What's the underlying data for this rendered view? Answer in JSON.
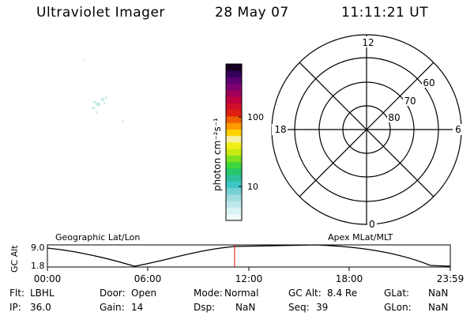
{
  "header": {
    "instrument": "Ultraviolet Imager",
    "date": "28 May 07",
    "time": "11:11:21 UT"
  },
  "colorbar": {
    "unit_label": "photon cm⁻²s⁻¹",
    "ticks": [
      "100",
      "10"
    ],
    "colors": [
      "#f0fafa",
      "#d9f2f2",
      "#bfe8ea",
      "#9fdcde",
      "#78d0d2",
      "#3ec8c8",
      "#2fbf9c",
      "#25c86a",
      "#3ed63c",
      "#7fe020",
      "#c8ea10",
      "#f0f018",
      "#f8f0a0",
      "#ffd200",
      "#ff9a00",
      "#f06000",
      "#e02010",
      "#d0102a",
      "#c00040",
      "#a0005a",
      "#800070",
      "#5c0070",
      "#34005a",
      "#140020"
    ]
  },
  "polar_plot": {
    "clock_labels": [
      "12",
      "18",
      "6",
      "0"
    ],
    "lat_labels": [
      "60",
      "70",
      "80"
    ]
  },
  "timeline": {
    "left_title": "Geographic Lat/Lon",
    "right_title": "Apex MLat/MLT",
    "axis_label": "GC Alt",
    "y_ticks": [
      "9.0",
      "1.8"
    ],
    "x_ticks": [
      "00:00",
      "06:00",
      "12:00",
      "18:00",
      "23:59"
    ],
    "marker_color": "#e00000"
  },
  "status": {
    "flt_label": "Flt:",
    "flt_value": "LBHL",
    "door_label": "Door:",
    "door_value": "Open",
    "mode_label": "Mode:",
    "mode_value": "Normal",
    "gcalt_label": "GC Alt:",
    "gcalt_value": "8.4 Re",
    "glat_label": "GLat:",
    "glat_value": "NaN",
    "ip_label": "IP:",
    "ip_value": "36.0",
    "gain_label": "Gain:",
    "gain_value": "14",
    "dsp_label": "Dsp:",
    "dsp_value": "NaN",
    "seq_label": "Seq:",
    "seq_value": "39",
    "glon_label": "GLon:",
    "glon_value": "NaN"
  }
}
